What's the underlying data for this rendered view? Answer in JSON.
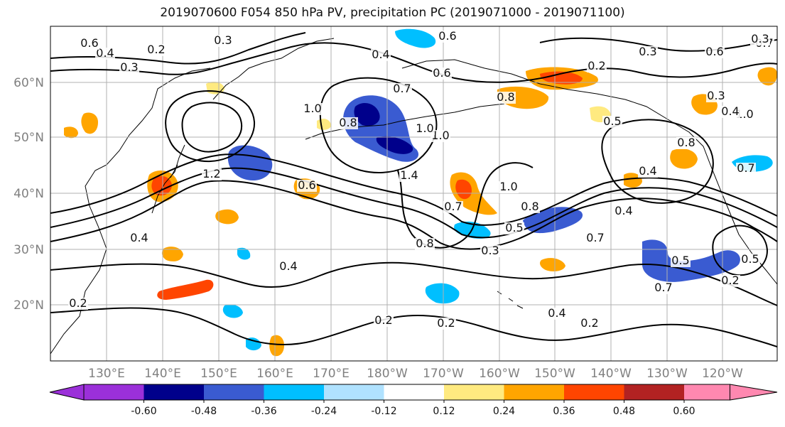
{
  "title": "2019070600 F054 850 hPa PV, precipitation PC (2019071000 - 2019071100)",
  "lat_labels": [
    "60°N",
    "50°N",
    "40°N",
    "30°N",
    "20°N"
  ],
  "lon_labels": [
    "130°E",
    "140°E",
    "150°E",
    "160°E",
    "170°E",
    "180°W",
    "170°W",
    "160°W",
    "150°W",
    "140°W",
    "130°W",
    "120°W"
  ],
  "colorbar": {
    "colors": [
      "#9b30d9",
      "#00008b",
      "#3a5bd1",
      "#00bfff",
      "#b0e2ff",
      "#ffffff",
      "#ffea80",
      "#ffa500",
      "#ff4500",
      "#b22222",
      "#ff88b0"
    ],
    "tick_labels": [
      "-0.60",
      "-0.48",
      "-0.36",
      "-0.24",
      "-0.12",
      "0.12",
      "0.24",
      "0.36",
      "0.48",
      "0.60"
    ]
  },
  "contour_labels": [
    "0.3",
    "0.2",
    "0.4",
    "0.3",
    "0.6",
    "0.6",
    "0.4",
    "0.6",
    "1.0",
    "0.8",
    "0.7",
    "0.2",
    "0.3",
    "0.8",
    "0.6",
    "0.7",
    "1.0",
    "0.8",
    "0.4",
    "1.2",
    "1.0",
    "0.6",
    "1.0",
    "0.7",
    "1.4",
    "0.5",
    "0.8",
    "1.0",
    "0.4",
    "0.4",
    "0.8",
    "0.3",
    "0.5",
    "0.3",
    "0.7",
    "0.5",
    "0.7",
    "0.4",
    "0.2",
    "0.2",
    "0.4",
    "0.2",
    "0.3",
    "0.2",
    "0.5",
    "0.7",
    "0.4",
    "0.2"
  ],
  "map_features": {
    "contour_field": "850 hPa PV",
    "shaded_field": "precipitation PC",
    "shading_colors": {
      "negative_strong": "#00008b",
      "negative_mid": "#3a5bd1",
      "negative_light": "#00bfff",
      "positive_light": "#ffea80",
      "positive_mid": "#ffa500",
      "positive_strong": "#ff4500"
    }
  }
}
